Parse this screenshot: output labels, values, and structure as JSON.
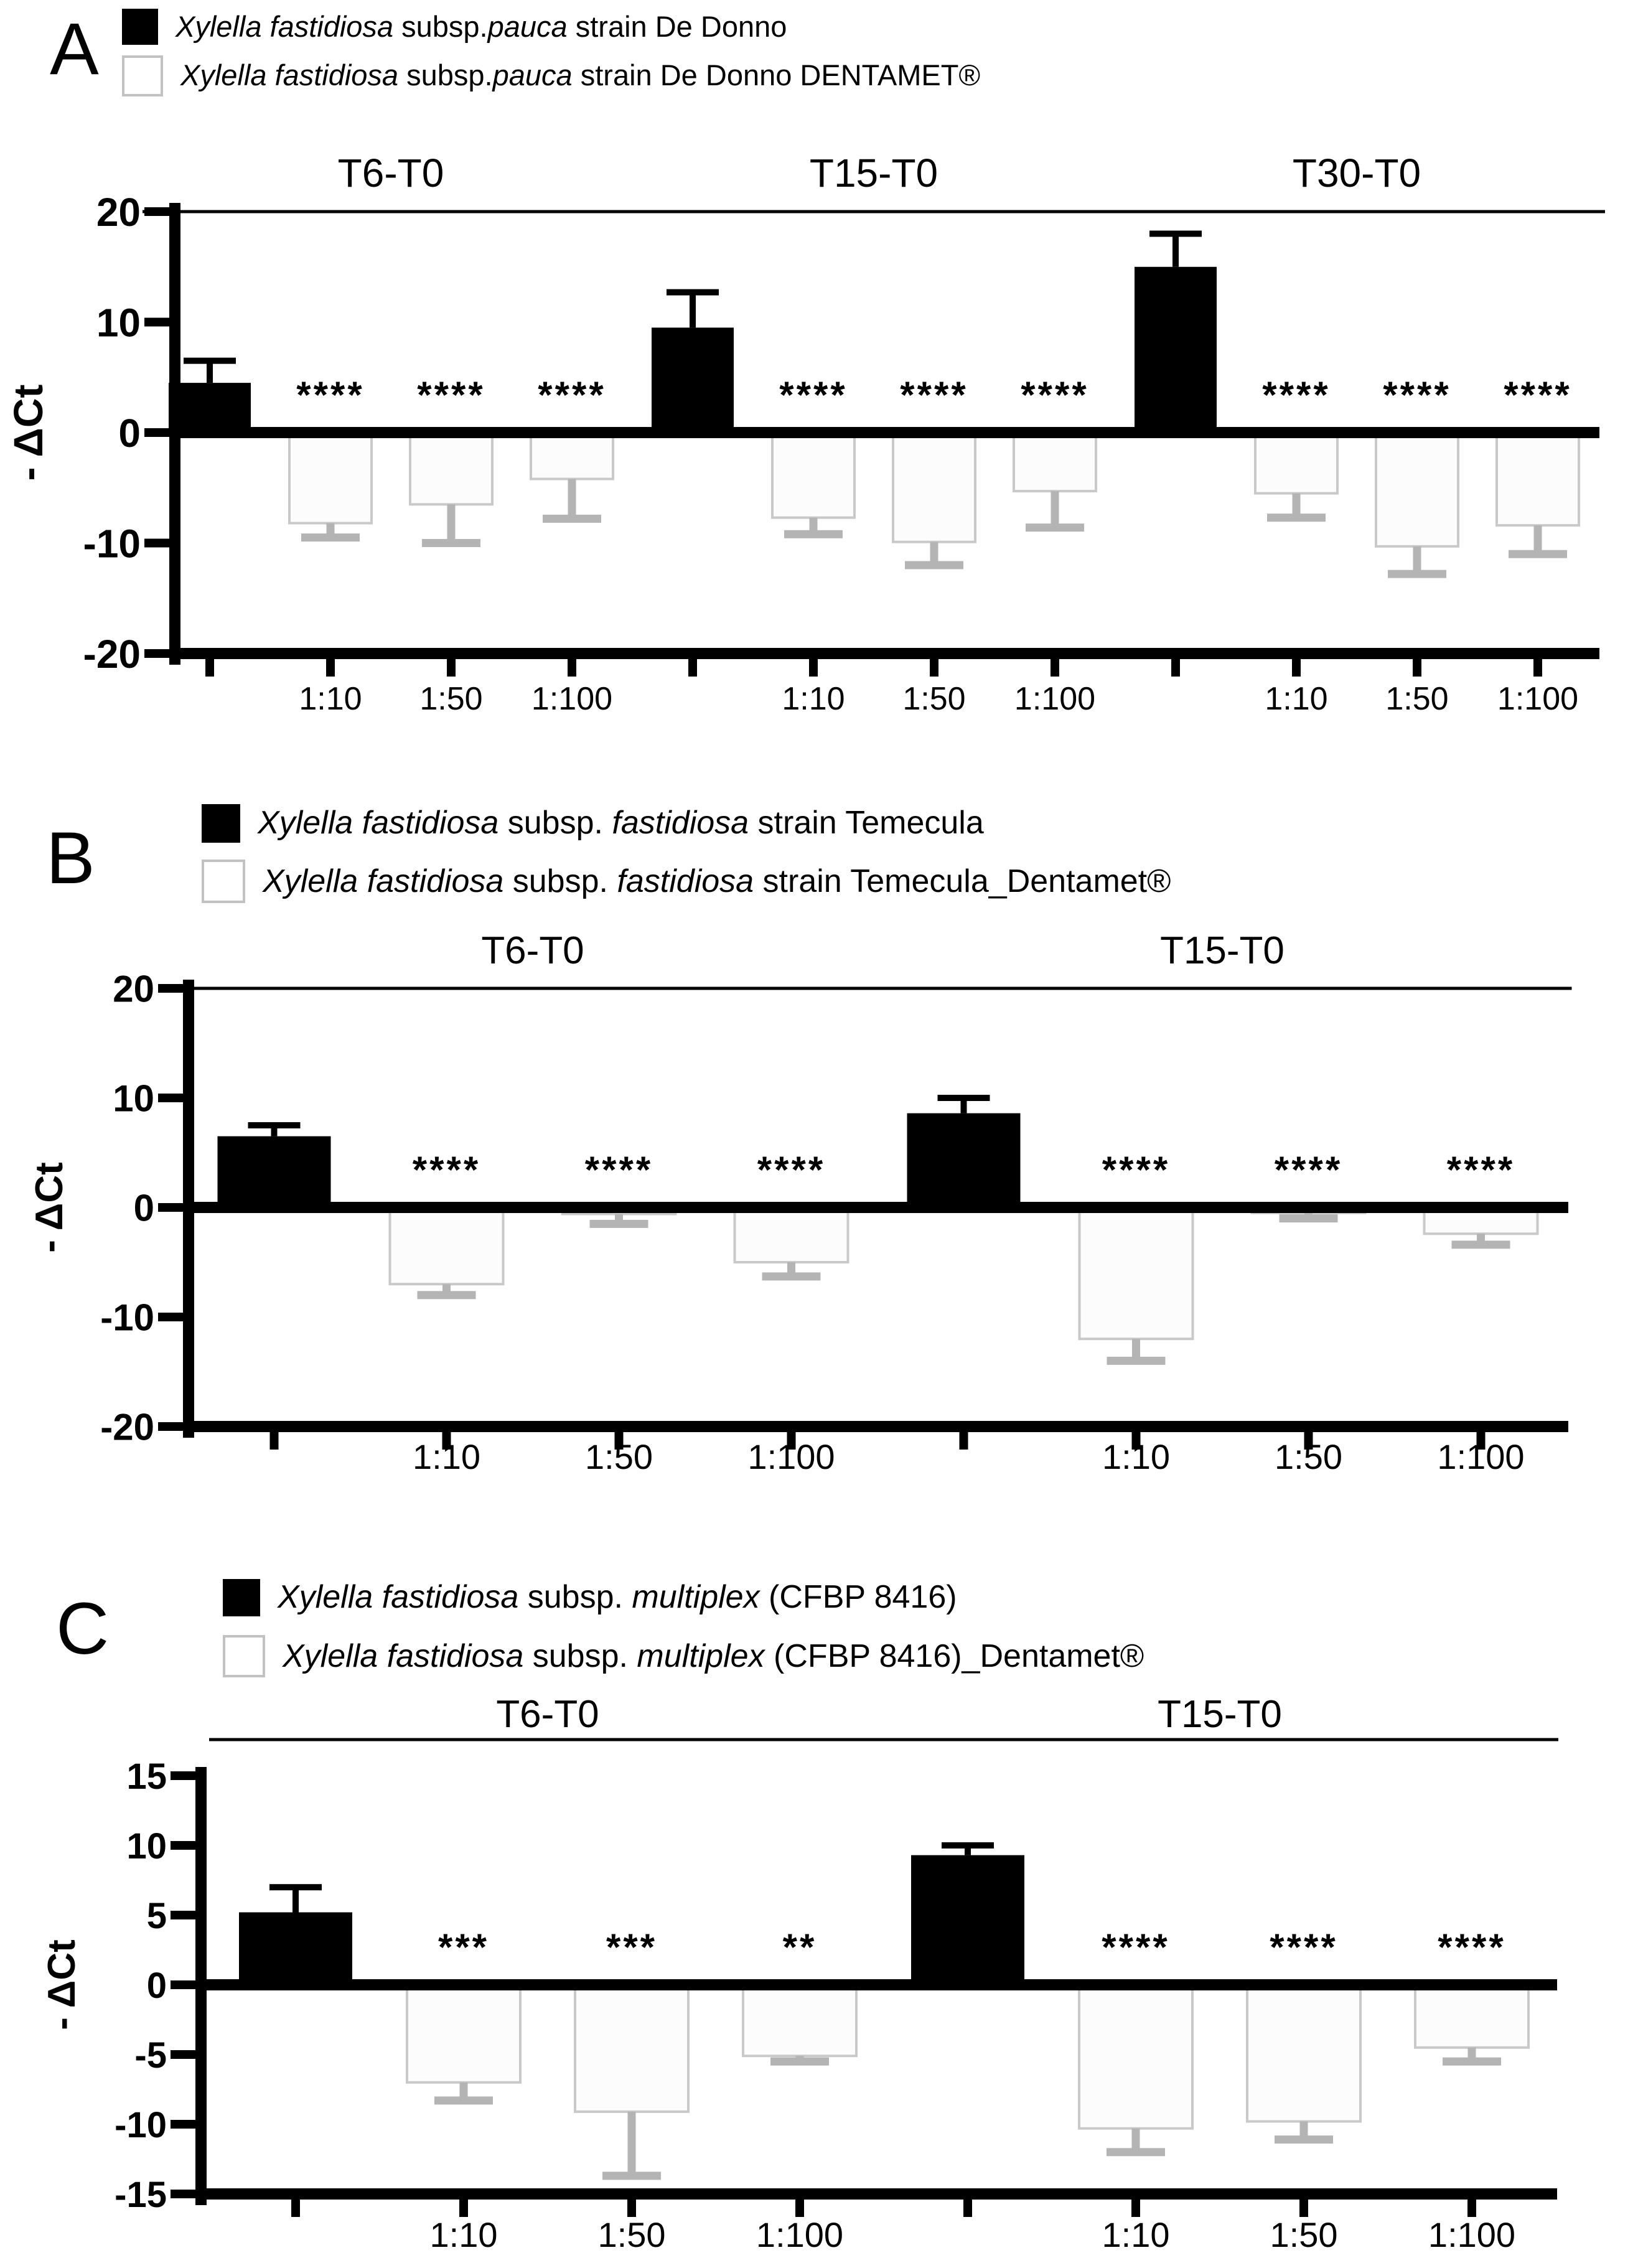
{
  "figure_type": "three-panel grouped bar figure",
  "colors": {
    "bar_filled": "#000000",
    "bar_open_fill": "#fcfcfc",
    "bar_open_stroke": "#c9c9c9",
    "error_bar_gray": "#b4b4b4",
    "axis": "#000000"
  },
  "chart_data": [
    {
      "panel": "A",
      "type": "bar",
      "ylabel": "- ΔCt",
      "ylim": [
        -20,
        20
      ],
      "yticks": [
        20,
        10,
        0,
        -10,
        -20
      ],
      "grid": false,
      "legend_position": "top-left",
      "legend": [
        {
          "swatch": "filled",
          "parts": [
            {
              "t": "Xylella fastidiosa",
              "i": true
            },
            {
              "t": " subsp.",
              "i": false
            },
            {
              "t": "pauca",
              "i": true
            },
            {
              "t": " strain De Donno",
              "i": false
            }
          ]
        },
        {
          "swatch": "open",
          "parts": [
            {
              "t": "Xylella fastidiosa",
              "i": true
            },
            {
              "t": " subsp.",
              "i": false
            },
            {
              "t": "pauca",
              "i": true
            },
            {
              "t": " strain De Donno DENTAMET®",
              "i": false
            }
          ]
        }
      ],
      "groups": [
        {
          "label": "T6-T0",
          "bars": [
            {
              "dilution": "",
              "fill": "filled",
              "value": 4.5,
              "err": 2.0,
              "sig": ""
            },
            {
              "dilution": "1:10",
              "fill": "open",
              "value": -8.2,
              "err": 1.3,
              "sig": "****"
            },
            {
              "dilution": "1:50",
              "fill": "open",
              "value": -6.5,
              "err": 3.5,
              "sig": "****"
            },
            {
              "dilution": "1:100",
              "fill": "open",
              "value": -4.2,
              "err": 3.6,
              "sig": "****"
            }
          ]
        },
        {
          "label": "T15-T0",
          "bars": [
            {
              "dilution": "",
              "fill": "filled",
              "value": 9.5,
              "err": 3.2,
              "sig": ""
            },
            {
              "dilution": "1:10",
              "fill": "open",
              "value": -7.7,
              "err": 1.5,
              "sig": "****"
            },
            {
              "dilution": "1:50",
              "fill": "open",
              "value": -9.9,
              "err": 2.1,
              "sig": "****"
            },
            {
              "dilution": "1:100",
              "fill": "open",
              "value": -5.3,
              "err": 3.3,
              "sig": "****"
            }
          ]
        },
        {
          "label": "T30-T0",
          "bars": [
            {
              "dilution": "",
              "fill": "filled",
              "value": 15.0,
              "err": 3.0,
              "sig": ""
            },
            {
              "dilution": "1:10",
              "fill": "open",
              "value": -5.5,
              "err": 2.2,
              "sig": "****"
            },
            {
              "dilution": "1:50",
              "fill": "open",
              "value": -10.3,
              "err": 2.5,
              "sig": "****"
            },
            {
              "dilution": "1:100",
              "fill": "open",
              "value": -8.4,
              "err": 2.6,
              "sig": "****"
            }
          ]
        }
      ]
    },
    {
      "panel": "B",
      "type": "bar",
      "ylabel": "- ΔCt",
      "ylim": [
        -20,
        20
      ],
      "yticks": [
        20,
        10,
        0,
        -10,
        -20
      ],
      "grid": false,
      "legend_position": "top-left",
      "legend": [
        {
          "swatch": "filled",
          "parts": [
            {
              "t": "Xylella fastidiosa",
              "i": true
            },
            {
              "t": " subsp. ",
              "i": false
            },
            {
              "t": "fastidiosa",
              "i": true
            },
            {
              "t": " strain Temecula",
              "i": false
            }
          ]
        },
        {
          "swatch": "open",
          "parts": [
            {
              "t": "Xylella fastidiosa",
              "i": true
            },
            {
              "t": " subsp. ",
              "i": false
            },
            {
              "t": "fastidiosa",
              "i": true
            },
            {
              "t": " strain Temecula_Dentamet®",
              "i": false
            }
          ]
        }
      ],
      "groups": [
        {
          "label": "T6-T0",
          "bars": [
            {
              "dilution": "",
              "fill": "filled",
              "value": 6.5,
              "err": 1.0,
              "sig": ""
            },
            {
              "dilution": "1:10",
              "fill": "open",
              "value": -7.0,
              "err": 1.0,
              "sig": "****"
            },
            {
              "dilution": "1:50",
              "fill": "open",
              "value": -0.6,
              "err": 0.9,
              "sig": "****"
            },
            {
              "dilution": "1:100",
              "fill": "open",
              "value": -5.0,
              "err": 1.3,
              "sig": "****"
            }
          ]
        },
        {
          "label": "T15-T0",
          "bars": [
            {
              "dilution": "",
              "fill": "filled",
              "value": 8.6,
              "err": 1.4,
              "sig": ""
            },
            {
              "dilution": "1:10",
              "fill": "open",
              "value": -12.0,
              "err": 2.0,
              "sig": "****"
            },
            {
              "dilution": "1:50",
              "fill": "open",
              "value": -0.5,
              "err": 0.5,
              "sig": "****"
            },
            {
              "dilution": "1:100",
              "fill": "open",
              "value": -2.4,
              "err": 1.0,
              "sig": "****"
            }
          ]
        }
      ]
    },
    {
      "panel": "C",
      "type": "bar",
      "ylabel": "- ΔCt",
      "ylim": [
        -15,
        15
      ],
      "yticks": [
        15,
        10,
        5,
        0,
        -5,
        -10,
        -15
      ],
      "grid": false,
      "legend_position": "top-left",
      "legend": [
        {
          "swatch": "filled",
          "parts": [
            {
              "t": "Xylella fastidiosa",
              "i": true
            },
            {
              "t": " subsp. ",
              "i": false
            },
            {
              "t": "multiplex",
              "i": true
            },
            {
              "t": " (CFBP 8416)",
              "i": false
            }
          ]
        },
        {
          "swatch": "open",
          "parts": [
            {
              "t": "Xylella fastidiosa",
              "i": true
            },
            {
              "t": " subsp. ",
              "i": false
            },
            {
              "t": "multiplex",
              "i": true
            },
            {
              "t": " (CFBP 8416)_Dentamet®",
              "i": false
            }
          ]
        }
      ],
      "groups": [
        {
          "label": "T6-T0",
          "bars": [
            {
              "dilution": "",
              "fill": "filled",
              "value": 5.2,
              "err": 1.8,
              "sig": ""
            },
            {
              "dilution": "1:10",
              "fill": "open",
              "value": -7.0,
              "err": 1.3,
              "sig": "***"
            },
            {
              "dilution": "1:50",
              "fill": "open",
              "value": -9.1,
              "err": 4.6,
              "sig": "***"
            },
            {
              "dilution": "1:100",
              "fill": "open",
              "value": -5.1,
              "err": 0.4,
              "sig": "**"
            }
          ]
        },
        {
          "label": "T15-T0",
          "bars": [
            {
              "dilution": "",
              "fill": "filled",
              "value": 9.3,
              "err": 0.7,
              "sig": ""
            },
            {
              "dilution": "1:10",
              "fill": "open",
              "value": -10.3,
              "err": 1.7,
              "sig": "****"
            },
            {
              "dilution": "1:50",
              "fill": "open",
              "value": -9.8,
              "err": 1.3,
              "sig": "****"
            },
            {
              "dilution": "1:100",
              "fill": "open",
              "value": -4.5,
              "err": 1.0,
              "sig": "****"
            }
          ]
        }
      ]
    }
  ]
}
